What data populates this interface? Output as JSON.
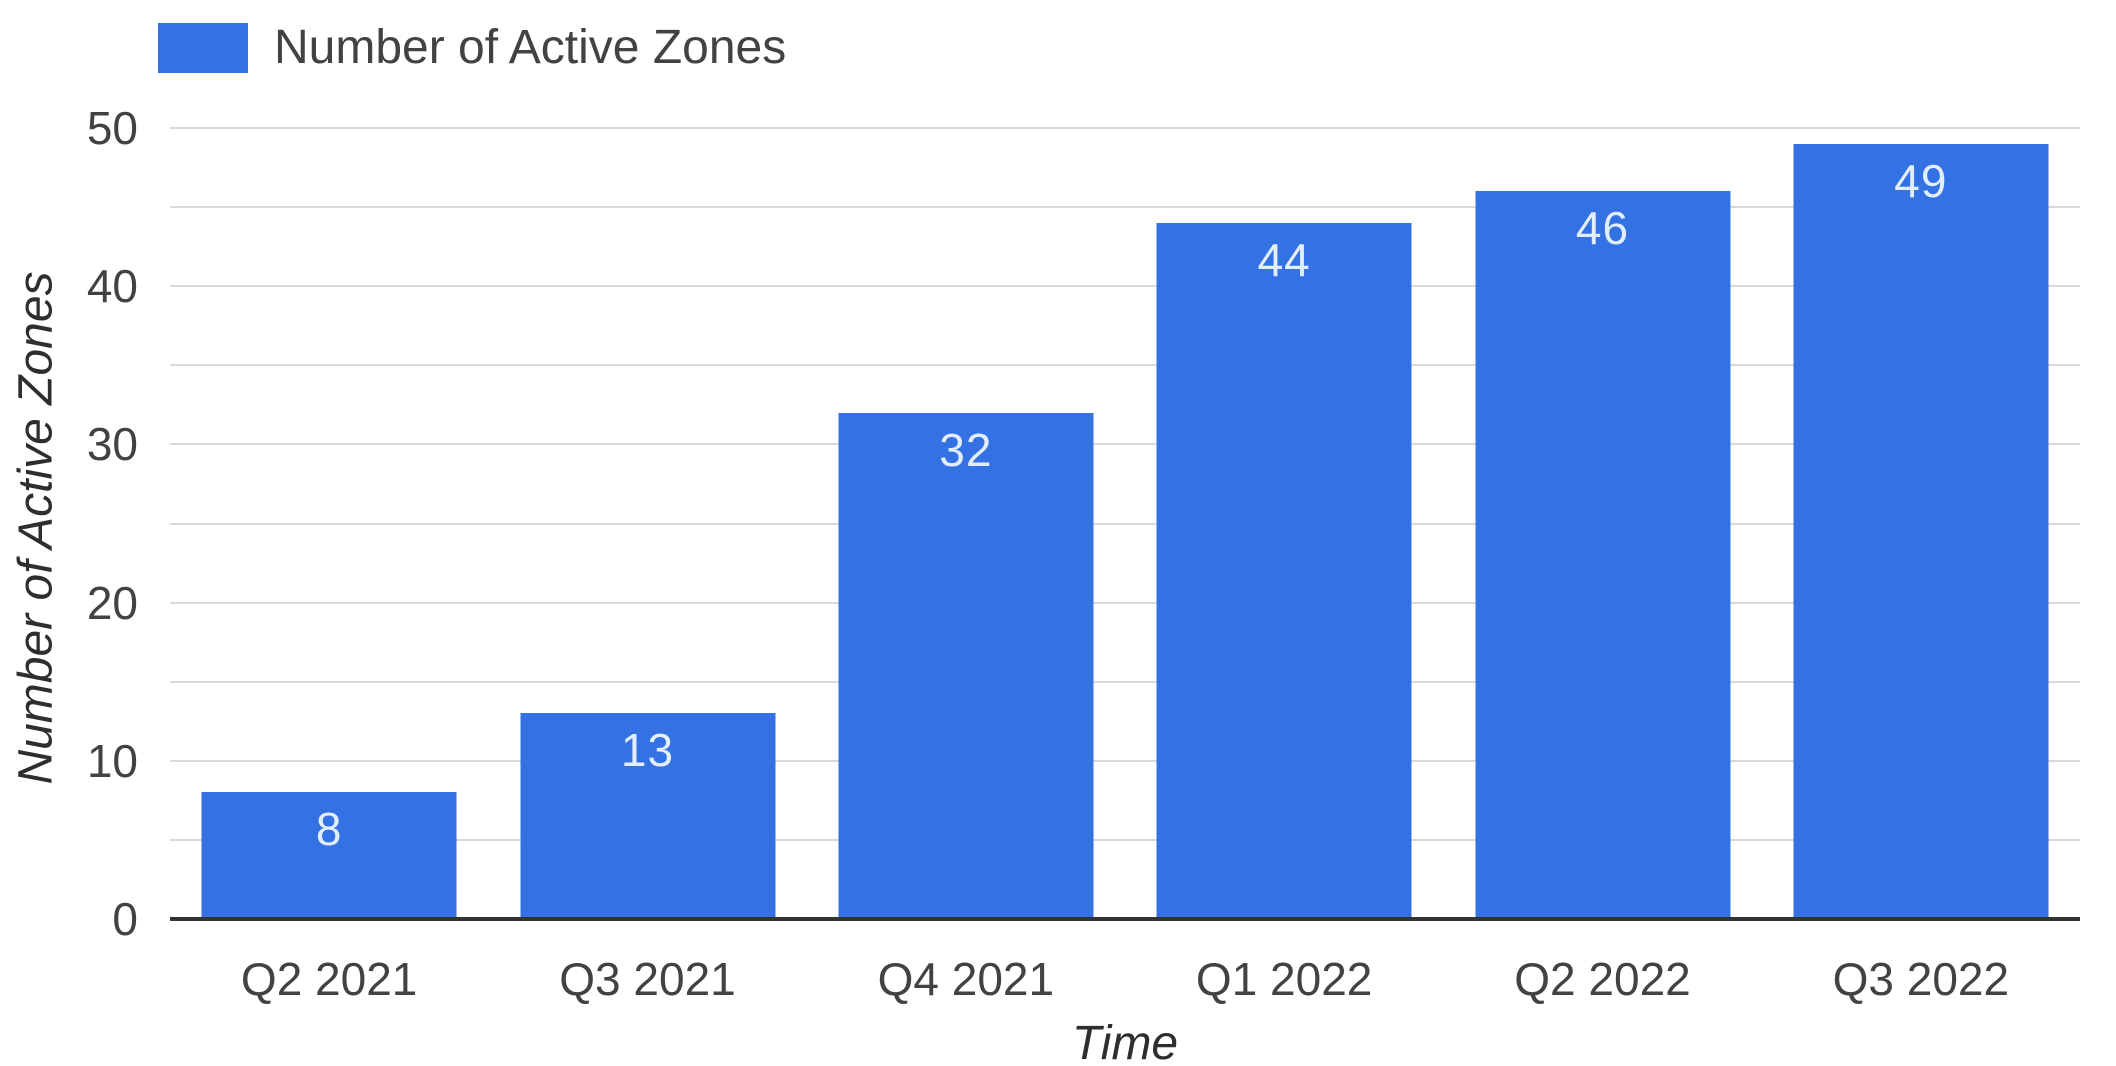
{
  "chart_data": {
    "type": "bar",
    "title": "",
    "categories": [
      "Q2 2021",
      "Q3 2021",
      "Q4 2021",
      "Q1 2022",
      "Q2 2022",
      "Q3 2022"
    ],
    "series": [
      {
        "name": "Number of Active Zones",
        "values": [
          8,
          13,
          32,
          44,
          46,
          49
        ],
        "data_labels": [
          "8",
          "13",
          "32",
          "44",
          "46",
          "49"
        ]
      }
    ],
    "xlabel": "Time",
    "ylabel": "Number of Active Zones",
    "ylim": [
      0,
      50
    ],
    "y_ticks": [
      0,
      10,
      20,
      30,
      40,
      50
    ],
    "gridline_interval": 5,
    "grid_on": true,
    "legend_position": "top-left",
    "colors": {
      "bar_fill": "#3472e4",
      "bar_label_text": "#e3eefb",
      "gridline": "#d9d9d9",
      "axis_line": "#333333",
      "tick_text": "#424242",
      "axis_title_text": "#2e2e2e"
    }
  },
  "legend": {
    "label": "Number of Active Zones"
  },
  "axes": {
    "x_title": "Time",
    "y_title": "Number of Active Zones"
  }
}
